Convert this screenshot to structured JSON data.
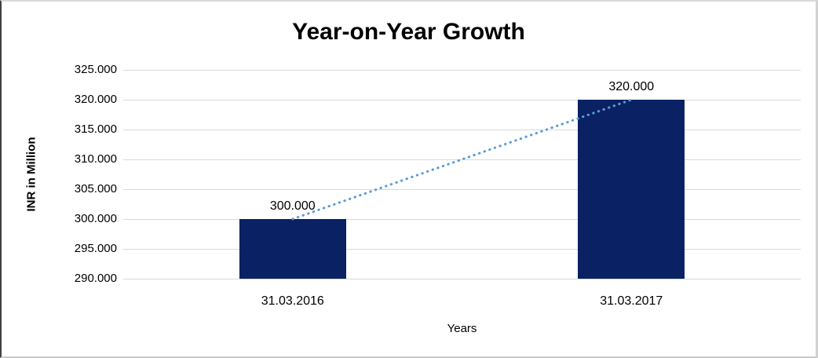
{
  "chart_data": {
    "type": "bar",
    "title": "Year-on-Year Growth",
    "xlabel": "Years",
    "ylabel": "INR in Million",
    "categories": [
      "31.03.2016",
      "31.03.2017"
    ],
    "values": [
      300000,
      320000
    ],
    "value_labels": [
      "300.000",
      "320.000"
    ],
    "ylim": [
      290000,
      325000
    ],
    "y_ticks": [
      290000,
      295000,
      300000,
      305000,
      310000,
      315000,
      320000,
      325000
    ],
    "y_tick_labels": [
      "290.000",
      "295.000",
      "300.000",
      "305.000",
      "310.000",
      "315.000",
      "320.000",
      "325.000"
    ],
    "grid": true,
    "legend": false,
    "trendline": {
      "style": "dotted",
      "color": "#5b9bd5",
      "from_value": 300000,
      "to_value": 320000
    },
    "colors": {
      "bar": "#0a2264",
      "gridline": "#d9d9d9",
      "text": "#000000"
    }
  }
}
